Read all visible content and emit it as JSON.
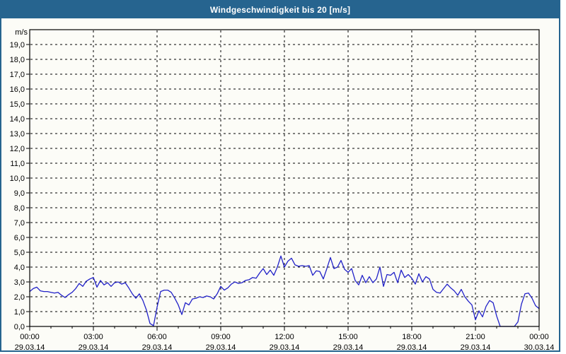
{
  "page": {
    "frame_color": "#26648F",
    "background": "#FCFCF7",
    "text_color": "#000000"
  },
  "title_bar": {
    "bg": "#26648F",
    "fg": "#FFFFFF"
  },
  "chart_data": {
    "type": "line",
    "title": "Windgeschwindigkeit bis 20 [m/s]",
    "ylabel": "m/s",
    "xlabel": "",
    "ylim": [
      0,
      20
    ],
    "y_major_step": 1,
    "y_labeled_max": 19,
    "decimal_separator": ",",
    "grid": "dashed",
    "grid_color": "#000000",
    "line_color": "#2121C8",
    "legend_position": "none",
    "x_total_min": 1440,
    "x_step_min": 10,
    "x_minor_tick_every_h": 1,
    "x_ticks": [
      {
        "h": 0,
        "time": "00:00",
        "date": "29.03.14"
      },
      {
        "h": 3,
        "time": "03:00",
        "date": "29.03.14"
      },
      {
        "h": 6,
        "time": "06:00",
        "date": "29.03.14"
      },
      {
        "h": 9,
        "time": "09:00",
        "date": "29.03.14"
      },
      {
        "h": 12,
        "time": "12:00",
        "date": "29.03.14"
      },
      {
        "h": 15,
        "time": "15:00",
        "date": "29.03.14"
      },
      {
        "h": 18,
        "time": "18:00",
        "date": "29.03.14"
      },
      {
        "h": 21,
        "time": "21:00",
        "date": "29.03.14"
      },
      {
        "h": 24,
        "time": "00:00",
        "date": "30.03.14"
      }
    ],
    "series": [
      {
        "name": "Windgeschwindigkeit",
        "unit": "m/s",
        "values": [
          2.35,
          2.55,
          2.65,
          2.4,
          2.35,
          2.35,
          2.3,
          2.25,
          2.3,
          2.1,
          1.95,
          2.15,
          2.3,
          2.55,
          2.9,
          2.7,
          3.05,
          3.2,
          3.3,
          2.65,
          3.1,
          2.8,
          2.95,
          2.7,
          2.95,
          3.0,
          2.85,
          2.95,
          2.6,
          2.2,
          1.9,
          2.2,
          1.75,
          1.1,
          0.2,
          0.05,
          1.3,
          2.35,
          2.45,
          2.45,
          2.3,
          1.9,
          1.45,
          0.8,
          1.6,
          1.45,
          1.85,
          1.9,
          2.0,
          1.95,
          2.05,
          2.0,
          1.85,
          2.2,
          2.7,
          2.45,
          2.6,
          2.85,
          3.0,
          2.9,
          2.95,
          3.1,
          3.15,
          3.3,
          3.25,
          3.6,
          3.9,
          3.5,
          3.8,
          3.45,
          4.0,
          4.75,
          4.0,
          4.4,
          4.6,
          4.15,
          4.05,
          4.1,
          4.05,
          4.1,
          3.45,
          3.75,
          3.7,
          3.2,
          3.9,
          4.65,
          3.9,
          4.0,
          4.45,
          3.85,
          3.65,
          3.9,
          3.1,
          2.8,
          3.45,
          2.95,
          3.35,
          2.95,
          3.2,
          4.0,
          2.7,
          3.5,
          3.45,
          3.65,
          2.95,
          3.8,
          3.3,
          3.5,
          3.25,
          2.85,
          3.55,
          3.0,
          3.35,
          3.2,
          2.5,
          2.3,
          2.25,
          2.55,
          2.85,
          2.6,
          2.4,
          2.1,
          2.5,
          2.0,
          1.7,
          1.45,
          0.45,
          1.05,
          0.65,
          1.35,
          1.75,
          1.6,
          0.7,
          0.0,
          0.0,
          0.0,
          0.0,
          0.0,
          0.3,
          1.5,
          2.2,
          2.25,
          1.9,
          1.4,
          1.2
        ]
      }
    ]
  }
}
